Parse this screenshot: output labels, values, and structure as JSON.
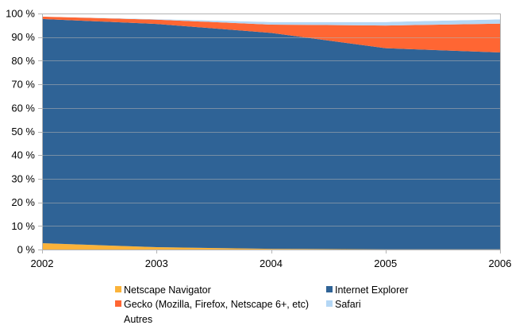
{
  "chart_data": {
    "type": "area",
    "stacked": "percent",
    "x": [
      2002,
      2003,
      2004,
      2005,
      2006
    ],
    "series": [
      {
        "name": "Netscape Navigator",
        "color": "#fbb33a",
        "values": [
          2.7,
          1.0,
          0.3,
          0.1,
          0.1
        ]
      },
      {
        "name": "Internet Explorer",
        "color": "#2f6396",
        "values": [
          95.0,
          94.6,
          91.5,
          85.2,
          83.4
        ]
      },
      {
        "name": "Gecko (Mozilla, Firefox, Netscape 6+, etc)",
        "color": "#ff6633",
        "values": [
          1.0,
          1.8,
          3.5,
          9.6,
          12.2
        ]
      },
      {
        "name": "Safari",
        "color": "#b4d7f5",
        "values": [
          0.0,
          0.2,
          1.1,
          1.5,
          1.8
        ]
      },
      {
        "name": "Autres",
        "color": "#ffffff",
        "values": [
          1.3,
          2.4,
          3.6,
          3.6,
          2.5
        ]
      }
    ],
    "y_ticks": [
      "0 %",
      "10 %",
      "20 %",
      "30 %",
      "40 %",
      "50 %",
      "60 %",
      "70 %",
      "80 %",
      "90 %",
      "100 %"
    ],
    "x_ticks": [
      "2002",
      "2003",
      "2004",
      "2005",
      "2006"
    ],
    "ylim": [
      0,
      100
    ],
    "grid": true,
    "legend_position": "bottom"
  }
}
